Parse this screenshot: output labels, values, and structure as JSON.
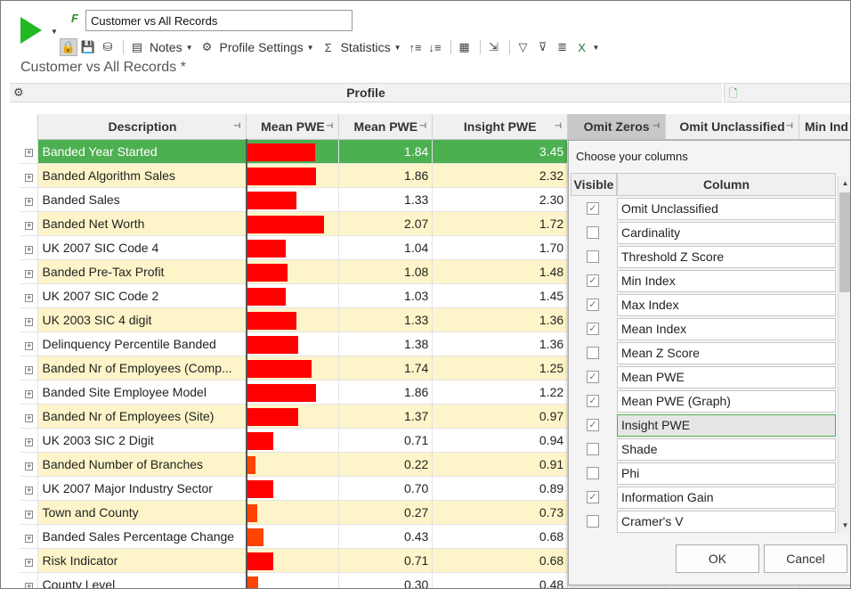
{
  "toolbar": {
    "query_name": "Customer vs All Records",
    "notes_label": "Notes",
    "profile_settings_label": "Profile Settings",
    "statistics_label": "Statistics"
  },
  "document_title": "Customer vs All Records *",
  "profile_header": "Profile",
  "grid": {
    "columns": [
      "Description",
      "Mean PWE",
      "Mean PWE",
      "Insight PWE",
      "Omit Zeros",
      "Omit Unclassified",
      "Min Ind"
    ],
    "rows": [
      {
        "desc": "Banded Year Started",
        "mean_pwe": "1.84",
        "insight_pwe": "3.45",
        "bar_value": 1.84
      },
      {
        "desc": "Banded Algorithm Sales",
        "mean_pwe": "1.86",
        "insight_pwe": "2.32",
        "bar_value": 1.86
      },
      {
        "desc": "Banded Sales",
        "mean_pwe": "1.33",
        "insight_pwe": "2.30",
        "bar_value": 1.33
      },
      {
        "desc": "Banded Net Worth",
        "mean_pwe": "2.07",
        "insight_pwe": "1.72",
        "bar_value": 2.07
      },
      {
        "desc": "UK 2007 SIC Code 4",
        "mean_pwe": "1.04",
        "insight_pwe": "1.70",
        "bar_value": 1.04
      },
      {
        "desc": "Banded Pre-Tax Profit",
        "mean_pwe": "1.08",
        "insight_pwe": "1.48",
        "bar_value": 1.08
      },
      {
        "desc": "UK 2007 SIC Code 2",
        "mean_pwe": "1.03",
        "insight_pwe": "1.45",
        "bar_value": 1.03
      },
      {
        "desc": "UK 2003 SIC 4 digit",
        "mean_pwe": "1.33",
        "insight_pwe": "1.36",
        "bar_value": 1.33
      },
      {
        "desc": "Delinquency Percentile Banded",
        "mean_pwe": "1.38",
        "insight_pwe": "1.36",
        "bar_value": 1.38
      },
      {
        "desc": "Banded Nr of Employees (Comp...",
        "mean_pwe": "1.74",
        "insight_pwe": "1.25",
        "bar_value": 1.74
      },
      {
        "desc": "Banded Site Employee Model",
        "mean_pwe": "1.86",
        "insight_pwe": "1.22",
        "bar_value": 1.86
      },
      {
        "desc": "Banded Nr of Employees (Site)",
        "mean_pwe": "1.37",
        "insight_pwe": "0.97",
        "bar_value": 1.37
      },
      {
        "desc": "UK 2003 SIC 2 Digit",
        "mean_pwe": "0.71",
        "insight_pwe": "0.94",
        "bar_value": 0.71
      },
      {
        "desc": "Banded Number of Branches",
        "mean_pwe": "0.22",
        "insight_pwe": "0.91",
        "bar_value": 0.22
      },
      {
        "desc": "UK 2007 Major Industry Sector",
        "mean_pwe": "0.70",
        "insight_pwe": "0.89",
        "bar_value": 0.7
      },
      {
        "desc": "Town and County",
        "mean_pwe": "0.27",
        "insight_pwe": "0.73",
        "bar_value": 0.27
      },
      {
        "desc": "Banded Sales Percentage Change",
        "mean_pwe": "0.43",
        "insight_pwe": "0.68",
        "bar_value": 0.43
      },
      {
        "desc": "Risk Indicator",
        "mean_pwe": "0.71",
        "insight_pwe": "0.68",
        "bar_value": 0.71
      },
      {
        "desc": "County Level",
        "mean_pwe": "0.30",
        "insight_pwe": "0.48",
        "bar_value": 0.3
      }
    ],
    "colors": {
      "bar_high": "#ff0000",
      "bar_low": "#ff4400",
      "highlight_row": "#4caf50",
      "alt_row": "#fdf5c9"
    }
  },
  "chooser": {
    "title": "Choose your columns",
    "visible_header": "Visible",
    "column_header": "Column",
    "items": [
      {
        "label": "Omit Unclassified",
        "visible": true
      },
      {
        "label": "Cardinality",
        "visible": false
      },
      {
        "label": "Threshold Z Score",
        "visible": false
      },
      {
        "label": "Min Index",
        "visible": true
      },
      {
        "label": "Max Index",
        "visible": true
      },
      {
        "label": "Mean Index",
        "visible": true
      },
      {
        "label": "Mean Z Score",
        "visible": false
      },
      {
        "label": "Mean PWE",
        "visible": true
      },
      {
        "label": "Mean PWE (Graph)",
        "visible": true
      },
      {
        "label": "Insight PWE",
        "visible": true,
        "selected": true
      },
      {
        "label": "Shade",
        "visible": false
      },
      {
        "label": "Phi",
        "visible": false
      },
      {
        "label": "Information Gain",
        "visible": true
      },
      {
        "label": "Cramer's V",
        "visible": false
      }
    ],
    "ok_label": "OK",
    "cancel_label": "Cancel"
  }
}
